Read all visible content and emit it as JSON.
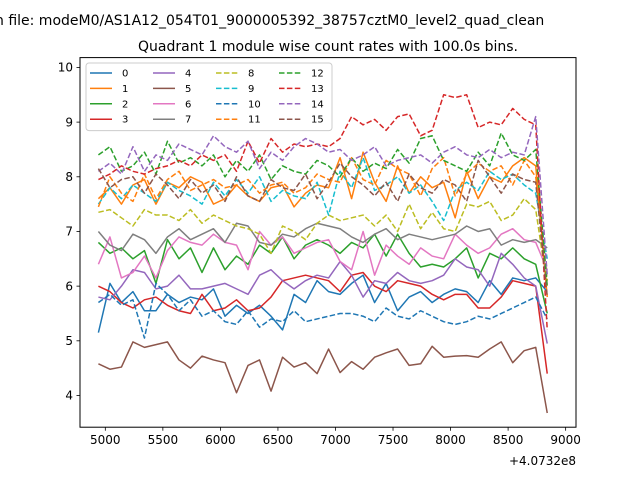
{
  "figure": {
    "suptitle": "n file: modeM0/AS1A12_054T01_9000005392_38757cztM0_level2_quad_clean"
  },
  "chart_data": {
    "type": "line",
    "title": "Quadrant 1 module wise count rates with 100.0s bins.",
    "xlabel": "",
    "ylabel": "",
    "x_offset_label": "+4.0732e8",
    "xlim": [
      4780,
      9090
    ],
    "ylim": [
      3.42,
      10.18
    ],
    "xticks": [
      5000,
      5500,
      6000,
      6500,
      7000,
      7500,
      8000,
      8500,
      9000
    ],
    "yticks": [
      4,
      5,
      6,
      7,
      8,
      9,
      10
    ],
    "grid": false,
    "legend": {
      "placement": "top-left",
      "columns": 4
    },
    "x_start": 4940,
    "x_step": 100,
    "x_end": 8840,
    "series": [
      {
        "name": "0",
        "color": "#1f77b4",
        "style": "solid",
        "values": [
          5.15,
          6.05,
          5.7,
          5.9,
          5.55,
          5.55,
          5.85,
          5.7,
          5.8,
          5.75,
          5.95,
          5.45,
          5.65,
          5.5,
          5.65,
          5.45,
          5.2,
          5.85,
          5.7,
          6.1,
          5.9,
          5.85,
          6.05,
          6.2,
          5.7,
          6.05,
          5.55,
          5.8,
          5.9,
          5.7,
          5.85,
          5.95,
          5.9,
          5.7,
          6.1,
          5.85,
          6.15,
          6.1,
          6.15,
          5.9
        ]
      },
      {
        "name": "1",
        "color": "#ff7f0e",
        "style": "solid",
        "values": [
          7.6,
          7.8,
          7.5,
          7.85,
          7.95,
          7.5,
          7.9,
          7.8,
          8.0,
          7.9,
          7.5,
          7.6,
          7.85,
          7.65,
          7.55,
          7.8,
          7.85,
          7.45,
          7.7,
          7.85,
          7.8,
          8.35,
          7.6,
          8.45,
          7.9,
          7.55,
          8.2,
          7.7,
          8.0,
          7.8,
          7.9,
          7.25,
          8.1,
          7.6,
          8.0,
          7.9,
          8.2,
          8.35,
          8.2,
          5.8
        ]
      },
      {
        "name": "2",
        "color": "#2ca02c",
        "style": "solid",
        "values": [
          6.8,
          6.6,
          6.7,
          6.5,
          6.65,
          6.05,
          6.85,
          6.5,
          6.7,
          6.25,
          6.7,
          6.3,
          6.55,
          6.4,
          6.75,
          6.6,
          6.9,
          6.5,
          6.75,
          6.85,
          6.75,
          6.6,
          6.8,
          6.7,
          6.95,
          6.55,
          6.95,
          6.6,
          6.35,
          6.4,
          6.35,
          6.5,
          6.7,
          6.15,
          6.6,
          6.5,
          6.7,
          6.5,
          6.4,
          5.5
        ]
      },
      {
        "name": "3",
        "color": "#d62728",
        "style": "solid",
        "values": [
          6.0,
          5.9,
          5.7,
          5.6,
          5.75,
          5.8,
          5.65,
          5.55,
          5.5,
          5.85,
          5.55,
          5.6,
          5.75,
          5.55,
          5.6,
          5.8,
          6.1,
          6.15,
          6.2,
          6.15,
          6.1,
          5.9,
          6.2,
          6.25,
          6.0,
          5.9,
          6.1,
          6.05,
          6.0,
          5.85,
          5.75,
          5.85,
          5.85,
          5.6,
          5.6,
          5.8,
          6.1,
          6.05,
          6.0,
          4.4
        ]
      },
      {
        "name": "4",
        "color": "#9467bd",
        "style": "solid",
        "values": [
          5.8,
          5.75,
          6.0,
          6.3,
          6.25,
          5.95,
          6.0,
          6.2,
          5.95,
          5.95,
          6.0,
          6.05,
          5.95,
          5.85,
          6.2,
          6.3,
          6.1,
          5.95,
          6.1,
          6.2,
          6.15,
          6.45,
          6.2,
          5.8,
          6.1,
          6.05,
          6.25,
          6.1,
          6.05,
          6.1,
          6.2,
          6.5,
          6.35,
          6.3,
          6.0,
          6.6,
          6.4,
          6.15,
          6.0,
          4.95
        ]
      },
      {
        "name": "5",
        "color": "#8c564b",
        "style": "solid",
        "values": [
          4.58,
          4.48,
          4.52,
          4.98,
          4.88,
          4.93,
          4.98,
          4.65,
          4.5,
          4.72,
          4.65,
          4.6,
          4.05,
          4.55,
          4.65,
          4.08,
          4.7,
          4.52,
          4.6,
          4.4,
          4.85,
          4.42,
          4.62,
          4.48,
          4.7,
          4.78,
          4.85,
          4.55,
          4.58,
          4.9,
          4.7,
          4.72,
          4.73,
          4.7,
          4.85,
          4.98,
          4.6,
          4.82,
          4.88,
          3.68
        ]
      },
      {
        "name": "6",
        "color": "#e377c2",
        "style": "solid",
        "values": [
          6.4,
          6.9,
          6.15,
          6.25,
          6.55,
          6.15,
          6.65,
          6.9,
          6.8,
          6.75,
          6.95,
          6.8,
          6.75,
          6.3,
          7.0,
          6.75,
          6.9,
          6.6,
          6.7,
          6.8,
          6.85,
          6.45,
          6.3,
          7.0,
          6.2,
          6.75,
          6.55,
          6.4,
          6.7,
          6.55,
          6.5,
          6.95,
          6.75,
          6.6,
          6.7,
          6.95,
          7.05,
          6.85,
          6.8,
          6.3
        ]
      },
      {
        "name": "7",
        "color": "#7f7f7f",
        "style": "solid",
        "values": [
          7.0,
          6.75,
          6.65,
          6.95,
          6.85,
          6.6,
          6.9,
          7.05,
          6.85,
          6.95,
          7.05,
          6.8,
          7.15,
          7.1,
          6.8,
          6.75,
          6.95,
          6.9,
          7.05,
          7.15,
          7.1,
          7.05,
          6.9,
          6.8,
          6.95,
          7.05,
          6.85,
          6.95,
          6.9,
          6.85,
          6.9,
          6.95,
          7.1,
          7.0,
          7.05,
          6.75,
          6.85,
          6.8,
          6.85,
          6.7
        ]
      },
      {
        "name": "8",
        "color": "#bcbd22",
        "style": "dashed",
        "values": [
          7.35,
          7.4,
          7.25,
          7.1,
          7.4,
          7.3,
          7.3,
          7.2,
          7.4,
          7.15,
          7.3,
          7.2,
          7.1,
          7.05,
          6.95,
          6.6,
          7.1,
          7.0,
          6.85,
          7.15,
          7.3,
          7.2,
          7.25,
          7.3,
          7.1,
          7.3,
          7.0,
          7.5,
          7.05,
          7.35,
          7.05,
          7.0,
          7.5,
          7.45,
          7.55,
          7.2,
          7.3,
          7.6,
          7.4,
          6.0
        ]
      },
      {
        "name": "9",
        "color": "#17becf",
        "style": "dashed",
        "values": [
          7.5,
          7.8,
          7.6,
          7.85,
          7.7,
          7.55,
          7.9,
          7.75,
          7.65,
          7.5,
          7.9,
          7.65,
          7.95,
          7.7,
          8.0,
          7.55,
          7.75,
          7.65,
          7.6,
          7.9,
          7.3,
          8.1,
          7.8,
          8.35,
          7.75,
          7.85,
          8.0,
          7.7,
          7.85,
          7.55,
          7.2,
          7.75,
          7.9,
          7.75,
          8.1,
          7.95,
          8.05,
          7.85,
          7.7,
          6.5
        ]
      },
      {
        "name": "10",
        "color": "#1f77b4",
        "style": "dashed",
        "values": [
          5.7,
          5.85,
          5.65,
          5.75,
          5.05,
          6.05,
          5.85,
          5.55,
          5.75,
          5.45,
          5.55,
          5.35,
          5.3,
          5.55,
          5.25,
          5.4,
          5.35,
          5.55,
          5.35,
          5.4,
          5.45,
          5.5,
          5.5,
          5.45,
          5.35,
          5.6,
          5.45,
          5.4,
          5.55,
          5.45,
          5.35,
          5.3,
          5.35,
          5.45,
          5.4,
          5.5,
          5.6,
          5.7,
          5.8,
          5.4
        ]
      },
      {
        "name": "11",
        "color": "#ff7f0e",
        "style": "dashed",
        "values": [
          7.45,
          8.0,
          7.7,
          7.55,
          8.05,
          7.6,
          7.95,
          8.1,
          7.75,
          7.85,
          7.95,
          7.8,
          7.85,
          7.95,
          7.7,
          7.85,
          7.9,
          7.7,
          7.8,
          8.05,
          7.95,
          7.9,
          8.35,
          7.95,
          7.85,
          8.3,
          8.15,
          8.05,
          7.65,
          8.15,
          8.35,
          7.65,
          8.05,
          8.25,
          8.1,
          8.2,
          7.85,
          8.3,
          8.0,
          6.1
        ]
      },
      {
        "name": "12",
        "color": "#2ca02c",
        "style": "dashed",
        "values": [
          8.4,
          8.55,
          8.1,
          8.2,
          8.45,
          8.05,
          8.65,
          8.25,
          8.35,
          8.2,
          8.4,
          8.0,
          8.3,
          8.1,
          8.4,
          7.95,
          8.2,
          8.1,
          8.05,
          8.3,
          8.2,
          8.0,
          8.35,
          8.1,
          8.25,
          8.15,
          8.5,
          8.25,
          8.7,
          8.75,
          8.3,
          8.2,
          8.1,
          8.45,
          8.2,
          8.8,
          8.4,
          8.3,
          8.5,
          6.0
        ]
      },
      {
        "name": "13",
        "color": "#d62728",
        "style": "dashed",
        "values": [
          7.95,
          8.05,
          8.2,
          8.1,
          8.05,
          8.15,
          8.2,
          8.3,
          8.2,
          8.4,
          8.3,
          8.4,
          8.1,
          8.65,
          8.25,
          8.7,
          8.45,
          8.6,
          8.55,
          8.6,
          8.55,
          8.7,
          9.1,
          8.95,
          9.05,
          8.85,
          9.1,
          9.15,
          8.75,
          8.85,
          9.5,
          9.45,
          9.5,
          8.9,
          9.0,
          8.95,
          9.25,
          9.05,
          8.95,
          5.2
        ]
      },
      {
        "name": "14",
        "color": "#9467bd",
        "style": "dashed",
        "values": [
          8.1,
          8.25,
          8.05,
          8.55,
          8.1,
          8.4,
          8.3,
          8.6,
          8.5,
          8.4,
          8.75,
          8.55,
          8.45,
          8.65,
          8.15,
          8.45,
          8.3,
          8.55,
          8.7,
          8.6,
          8.45,
          8.5,
          8.3,
          8.4,
          8.55,
          8.2,
          8.3,
          8.35,
          8.4,
          8.25,
          8.45,
          8.55,
          8.4,
          8.35,
          8.5,
          8.35,
          8.45,
          8.4,
          9.1,
          6.2
        ]
      },
      {
        "name": "15",
        "color": "#8c564b",
        "style": "dashed",
        "values": [
          8.15,
          7.8,
          7.95,
          8.0,
          7.7,
          8.05,
          7.85,
          7.6,
          7.95,
          7.7,
          7.85,
          7.55,
          8.0,
          7.65,
          7.55,
          7.95,
          7.8,
          7.75,
          8.05,
          7.6,
          7.9,
          8.25,
          8.0,
          7.85,
          7.65,
          7.9,
          7.55,
          8.05,
          7.8,
          7.7,
          7.95,
          7.85,
          7.55,
          8.3,
          8.0,
          7.7,
          8.05,
          7.95,
          7.9,
          5.8
        ]
      }
    ]
  }
}
